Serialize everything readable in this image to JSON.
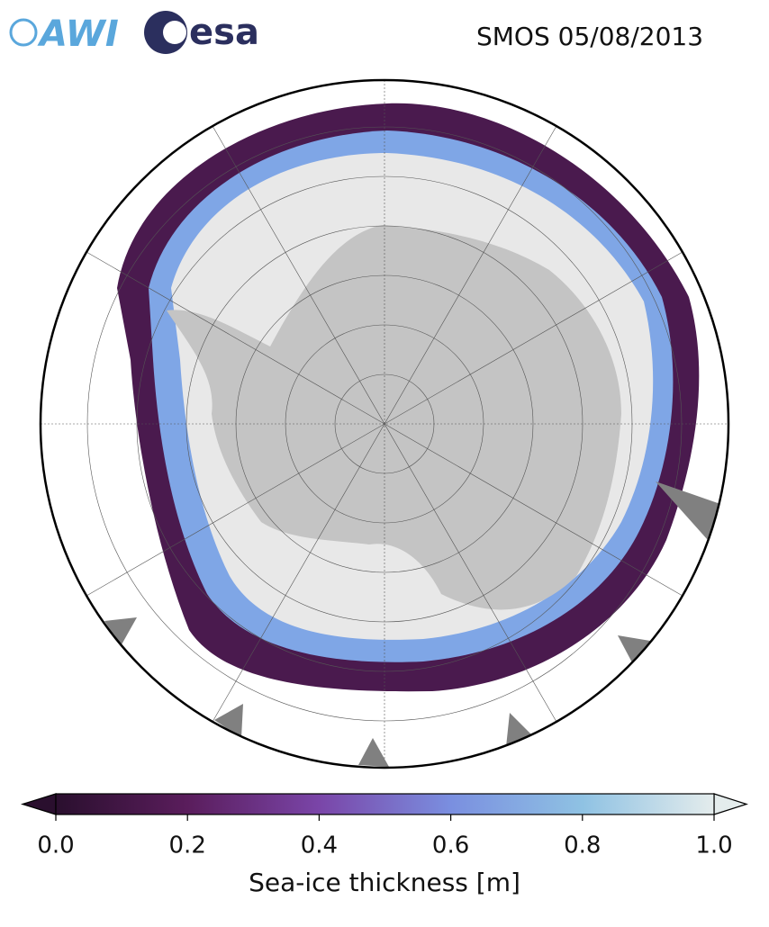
{
  "header": {
    "logo_left": "AWI",
    "logo_right": "esa",
    "title": "SMOS 05/08/2013"
  },
  "colorbar": {
    "label": "Sea-ice thickness [m]",
    "lim": [
      0,
      1
    ],
    "ticks": [
      {
        "value": 0,
        "label": "0.0"
      },
      0.2,
      0.4,
      0.6,
      {
        "value": 1,
        "label": "1.0"
      },
      0.8
    ],
    "colors": [
      "#2a0f2e",
      "#5a1d5c",
      "#7a45a8",
      "#7a8fe0",
      "#8fc2e3",
      "#e4ecec"
    ]
  }
}
